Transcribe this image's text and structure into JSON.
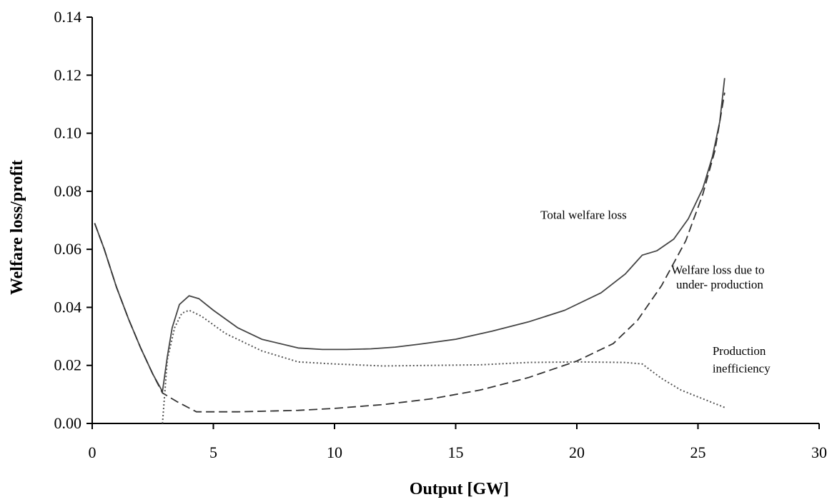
{
  "chart_data": {
    "type": "line",
    "xlabel": "Output [GW]",
    "ylabel": "Welfare loss/profit",
    "xlim": [
      0,
      30
    ],
    "ylim": [
      0,
      0.14
    ],
    "x_ticks": [
      0,
      5,
      10,
      15,
      20,
      25,
      30
    ],
    "y_ticks": [
      0,
      0.02,
      0.04,
      0.06,
      0.08,
      0.1,
      0.12,
      0.14
    ],
    "x_tick_labels": [
      "0",
      "5",
      "10",
      "15",
      "20",
      "25",
      "30"
    ],
    "y_tick_labels": [
      "0.00",
      "0.02",
      "0.04",
      "0.06",
      "0.08",
      "0.10",
      "0.12",
      "0.14"
    ],
    "grid": false,
    "legend": "none",
    "series": [
      {
        "label": "Total welfare loss",
        "style": "solid",
        "color": "#444444",
        "x": [
          0.1,
          0.5,
          1.0,
          1.5,
          2.0,
          2.5,
          2.9,
          3.1,
          3.3,
          3.6,
          4.0,
          4.4,
          5.0,
          6.0,
          7.0,
          8.5,
          9.5,
          10.5,
          11.5,
          12.5,
          13.5,
          15.0,
          16.5,
          18.0,
          19.5,
          21.0,
          22.0,
          22.7,
          23.3,
          24.0,
          24.6,
          25.2,
          25.6,
          25.9,
          26.1
        ],
        "y": [
          0.069,
          0.06,
          0.047,
          0.036,
          0.026,
          0.017,
          0.011,
          0.023,
          0.033,
          0.041,
          0.044,
          0.043,
          0.039,
          0.033,
          0.029,
          0.026,
          0.0255,
          0.0255,
          0.0257,
          0.0263,
          0.0273,
          0.029,
          0.0318,
          0.035,
          0.039,
          0.045,
          0.0515,
          0.058,
          0.0595,
          0.0635,
          0.0705,
          0.081,
          0.092,
          0.104,
          0.119
        ]
      },
      {
        "label": "Welfare loss due to under- production",
        "style": "dashed",
        "color": "#333333",
        "x": [
          0.1,
          0.5,
          1.0,
          1.5,
          2.0,
          2.5,
          2.9,
          3.5,
          4.3,
          6.0,
          8.5,
          10.0,
          12.0,
          14.0,
          16.0,
          18.0,
          20.0,
          21.5,
          22.5,
          23.5,
          24.5,
          25.2,
          25.7,
          26.1
        ],
        "y": [
          0.069,
          0.06,
          0.047,
          0.036,
          0.026,
          0.017,
          0.0105,
          0.0075,
          0.004,
          0.004,
          0.0045,
          0.0052,
          0.0065,
          0.0085,
          0.0115,
          0.0158,
          0.0215,
          0.0275,
          0.0355,
          0.0475,
          0.063,
          0.079,
          0.094,
          0.114
        ]
      },
      {
        "label": "Production inefficiency",
        "style": "dotted",
        "color": "#555555",
        "x": [
          2.9,
          3.1,
          3.4,
          3.7,
          4.0,
          4.5,
          5.5,
          7.0,
          8.5,
          10.0,
          12.0,
          14.0,
          16.0,
          18.0,
          20.0,
          22.0,
          22.7,
          23.5,
          24.3,
          25.2,
          26.1
        ],
        "y": [
          0.0,
          0.022,
          0.033,
          0.038,
          0.039,
          0.037,
          0.031,
          0.025,
          0.0212,
          0.0205,
          0.0198,
          0.02,
          0.0202,
          0.021,
          0.0212,
          0.021,
          0.0205,
          0.0155,
          0.0115,
          0.0085,
          0.0055
        ]
      }
    ],
    "annotations": [
      {
        "text": "Total welfare loss",
        "x": 18.5,
        "y": 0.0705
      },
      {
        "text": "Welfare loss due to",
        "x": 23.9,
        "y": 0.0515
      },
      {
        "text": "under- production",
        "x": 24.1,
        "y": 0.0465
      },
      {
        "text": "Production",
        "x": 25.6,
        "y": 0.0236
      },
      {
        "text": "inefficiency",
        "x": 25.6,
        "y": 0.0176
      }
    ]
  }
}
